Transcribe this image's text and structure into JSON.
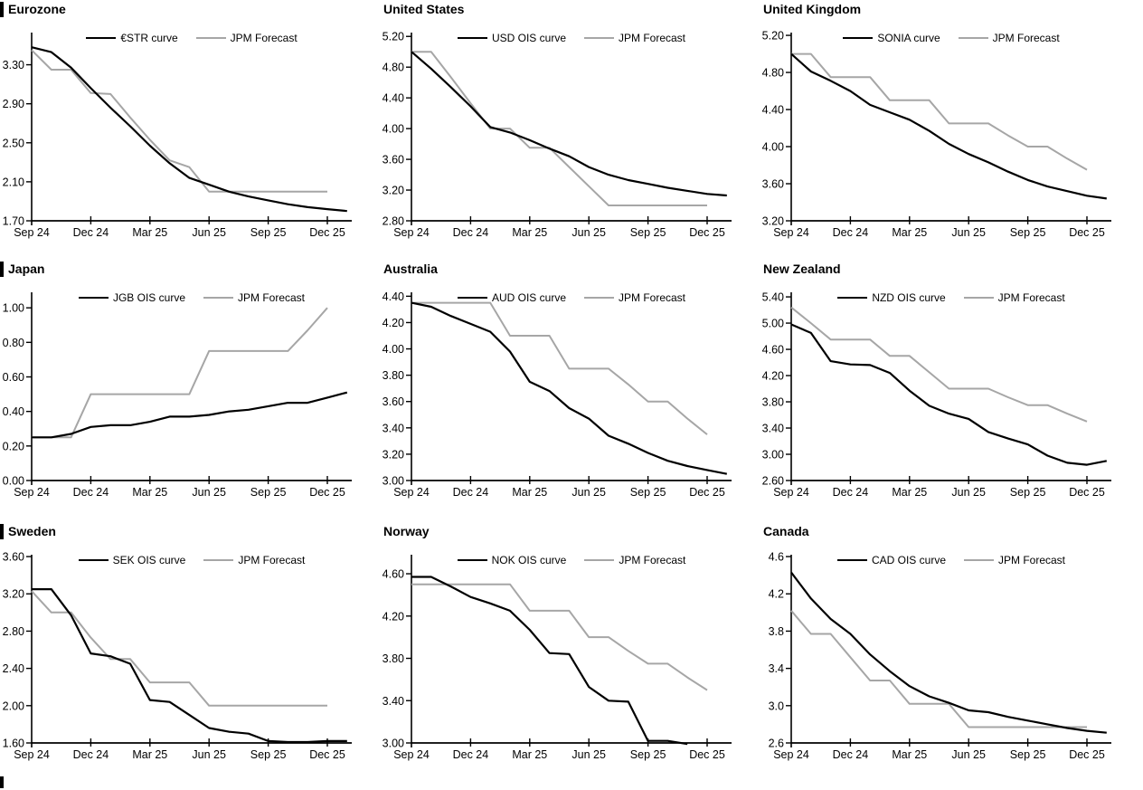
{
  "chart_data": {
    "type": "line",
    "x_axis": {
      "tick_labels": [
        "Sep 24",
        "Dec 24",
        "Mar 25",
        "Jun 25",
        "Sep 25",
        "Dec 25"
      ],
      "tick_positions_months": [
        0,
        3,
        6,
        9,
        12,
        15
      ],
      "unit": "months from Sep 2024, monthly sampling"
    },
    "line_colors": {
      "market_curve": "#000000",
      "forecast": "#a6a6a6"
    },
    "charts": [
      {
        "title": "Eurozone",
        "ylim": [
          1.7,
          3.63
        ],
        "y_ticks": {
          "values": [
            1.7,
            2.1,
            2.5,
            2.9,
            3.3
          ],
          "labels": [
            "1.70",
            "2.10",
            "2.50",
            "2.90",
            "3.30"
          ]
        },
        "series": [
          {
            "name": "€STR curve",
            "color": "#000000",
            "values": [
              3.48,
              3.43,
              3.27,
              3.06,
              2.86,
              2.67,
              2.47,
              2.29,
              2.14,
              2.07,
              2.0,
              1.95,
              1.91,
              1.87,
              1.84,
              1.82,
              1.8
            ]
          },
          {
            "name": "JPM Forecast",
            "color": "#a6a6a6",
            "values": [
              3.45,
              3.25,
              3.25,
              3.01,
              3.0,
              2.76,
              2.53,
              2.32,
              2.25,
              2.0,
              2.0,
              2.0,
              2.0,
              2.0,
              2.0,
              2.0
            ]
          }
        ]
      },
      {
        "title": "United States",
        "ylim": [
          2.8,
          5.25
        ],
        "y_ticks": {
          "values": [
            2.8,
            3.2,
            3.6,
            4.0,
            4.4,
            4.8,
            5.2
          ],
          "labels": [
            "2.80",
            "3.20",
            "3.60",
            "4.00",
            "4.40",
            "4.80",
            "5.20"
          ]
        },
        "series": [
          {
            "name": "USD OIS curve",
            "color": "#000000",
            "values": [
              5.0,
              4.78,
              4.54,
              4.29,
              4.02,
              3.95,
              3.85,
              3.74,
              3.64,
              3.5,
              3.4,
              3.33,
              3.28,
              3.23,
              3.19,
              3.15,
              3.13
            ]
          },
          {
            "name": "JPM Forecast",
            "color": "#a6a6a6",
            "values": [
              5.0,
              5.0,
              4.67,
              4.33,
              4.0,
              4.0,
              3.75,
              3.75,
              3.5,
              3.25,
              3.0,
              3.0,
              3.0,
              3.0,
              3.0,
              3.0
            ]
          }
        ]
      },
      {
        "title": "United Kingdom",
        "ylim": [
          3.2,
          5.23
        ],
        "y_ticks": {
          "values": [
            3.2,
            3.6,
            4.0,
            4.4,
            4.8,
            5.2
          ],
          "labels": [
            "3.20",
            "3.60",
            "4.00",
            "4.40",
            "4.80",
            "5.20"
          ]
        },
        "series": [
          {
            "name": "SONIA curve",
            "color": "#000000",
            "values": [
              5.0,
              4.81,
              4.71,
              4.6,
              4.45,
              4.37,
              4.29,
              4.17,
              4.03,
              3.92,
              3.83,
              3.73,
              3.64,
              3.57,
              3.52,
              3.47,
              3.44
            ]
          },
          {
            "name": "JPM Forecast",
            "color": "#a6a6a6",
            "values": [
              5.0,
              5.0,
              4.75,
              4.75,
              4.75,
              4.5,
              4.5,
              4.5,
              4.25,
              4.25,
              4.25,
              4.12,
              4.0,
              4.0,
              3.87,
              3.75
            ]
          }
        ]
      },
      {
        "title": "Japan",
        "ylim": [
          0.0,
          1.09
        ],
        "y_ticks": {
          "values": [
            0.0,
            0.2,
            0.4,
            0.6,
            0.8,
            1.0
          ],
          "labels": [
            "0.00",
            "0.20",
            "0.40",
            "0.60",
            "0.80",
            "1.00"
          ]
        },
        "series": [
          {
            "name": "JGB OIS curve",
            "color": "#000000",
            "values": [
              0.25,
              0.25,
              0.27,
              0.31,
              0.32,
              0.32,
              0.34,
              0.37,
              0.37,
              0.38,
              0.4,
              0.41,
              0.43,
              0.45,
              0.45,
              0.48,
              0.51
            ]
          },
          {
            "name": "JPM Forecast",
            "color": "#a6a6a6",
            "values": [
              0.25,
              0.25,
              0.25,
              0.5,
              0.5,
              0.5,
              0.5,
              0.5,
              0.5,
              0.75,
              0.75,
              0.75,
              0.75,
              0.75,
              0.87,
              1.0
            ]
          }
        ]
      },
      {
        "title": "Australia",
        "ylim": [
          3.0,
          4.43
        ],
        "y_ticks": {
          "values": [
            3.0,
            3.2,
            3.4,
            3.6,
            3.8,
            4.0,
            4.2,
            4.4
          ],
          "labels": [
            "3.00",
            "3.20",
            "3.40",
            "3.60",
            "3.80",
            "4.00",
            "4.20",
            "4.40"
          ]
        },
        "series": [
          {
            "name": "AUD OIS curve",
            "color": "#000000",
            "values": [
              4.35,
              4.32,
              4.25,
              4.19,
              4.13,
              3.98,
              3.75,
              3.68,
              3.55,
              3.47,
              3.34,
              3.28,
              3.21,
              3.15,
              3.11,
              3.08,
              3.05
            ]
          },
          {
            "name": "JPM Forecast",
            "color": "#a6a6a6",
            "values": [
              4.35,
              4.35,
              4.35,
              4.35,
              4.35,
              4.1,
              4.1,
              4.1,
              3.85,
              3.85,
              3.85,
              3.73,
              3.6,
              3.6,
              3.47,
              3.35
            ]
          }
        ]
      },
      {
        "title": "New Zealand",
        "ylim": [
          2.6,
          5.47
        ],
        "y_ticks": {
          "values": [
            2.6,
            3.0,
            3.4,
            3.8,
            4.2,
            4.6,
            5.0,
            5.4
          ],
          "labels": [
            "2.60",
            "3.00",
            "3.40",
            "3.80",
            "4.20",
            "4.60",
            "5.00",
            "5.40"
          ]
        },
        "series": [
          {
            "name": "NZD OIS curve",
            "color": "#000000",
            "values": [
              4.98,
              4.85,
              4.42,
              4.37,
              4.36,
              4.24,
              3.97,
              3.74,
              3.62,
              3.54,
              3.34,
              3.24,
              3.15,
              2.98,
              2.87,
              2.84,
              2.9
            ]
          },
          {
            "name": "JPM Forecast",
            "color": "#a6a6a6",
            "values": [
              5.24,
              5.0,
              4.75,
              4.75,
              4.75,
              4.5,
              4.5,
              4.25,
              4.0,
              4.0,
              4.0,
              3.87,
              3.75,
              3.75,
              3.62,
              3.5
            ]
          }
        ]
      },
      {
        "title": "Sweden",
        "ylim": [
          1.6,
          3.62
        ],
        "y_ticks": {
          "values": [
            1.6,
            2.0,
            2.4,
            2.8,
            3.2,
            3.6
          ],
          "labels": [
            "1.60",
            "2.00",
            "2.40",
            "2.80",
            "3.20",
            "3.60"
          ]
        },
        "series": [
          {
            "name": "SEK OIS curve",
            "color": "#000000",
            "values": [
              3.25,
              3.25,
              2.97,
              2.56,
              2.53,
              2.45,
              2.06,
              2.04,
              1.9,
              1.76,
              1.72,
              1.7,
              1.62,
              1.61,
              1.61,
              1.62,
              1.62
            ]
          },
          {
            "name": "JPM Forecast",
            "color": "#a6a6a6",
            "values": [
              3.23,
              3.0,
              3.0,
              2.73,
              2.5,
              2.5,
              2.25,
              2.25,
              2.25,
              2.0,
              2.0,
              2.0,
              2.0,
              2.0,
              2.0,
              2.0
            ]
          }
        ]
      },
      {
        "title": "Norway",
        "ylim": [
          3.0,
          4.78
        ],
        "y_ticks": {
          "values": [
            3.0,
            3.4,
            3.8,
            4.2,
            4.6
          ],
          "labels": [
            "3.00",
            "3.40",
            "3.80",
            "4.20",
            "4.60"
          ]
        },
        "series": [
          {
            "name": "NOK OIS curve",
            "color": "#000000",
            "values": [
              4.57,
              4.57,
              4.48,
              4.38,
              4.32,
              4.25,
              4.07,
              3.85,
              3.84,
              3.53,
              3.4,
              3.39,
              3.02,
              3.02,
              2.99
            ]
          },
          {
            "name": "JPM Forecast",
            "color": "#a6a6a6",
            "values": [
              4.5,
              4.5,
              4.5,
              4.5,
              4.5,
              4.5,
              4.25,
              4.25,
              4.25,
              4.0,
              4.0,
              3.87,
              3.75,
              3.75,
              3.62,
              3.5
            ]
          }
        ]
      },
      {
        "title": "Canada",
        "ylim": [
          2.6,
          4.62
        ],
        "y_ticks": {
          "values": [
            2.6,
            3.0,
            3.4,
            3.8,
            4.2,
            4.6
          ],
          "labels": [
            "2.6",
            "3.0",
            "3.4",
            "3.8",
            "4.2",
            "4.6"
          ]
        },
        "series": [
          {
            "name": "CAD OIS curve",
            "color": "#000000",
            "values": [
              4.43,
              4.15,
              3.93,
              3.77,
              3.55,
              3.37,
              3.21,
              3.1,
              3.03,
              2.95,
              2.93,
              2.88,
              2.84,
              2.8,
              2.76,
              2.73,
              2.71
            ]
          },
          {
            "name": "JPM Forecast",
            "color": "#a6a6a6",
            "values": [
              4.02,
              3.77,
              3.77,
              3.52,
              3.27,
              3.27,
              3.02,
              3.02,
              3.02,
              2.77,
              2.77,
              2.77,
              2.77,
              2.77,
              2.77,
              2.77
            ]
          }
        ]
      }
    ]
  }
}
